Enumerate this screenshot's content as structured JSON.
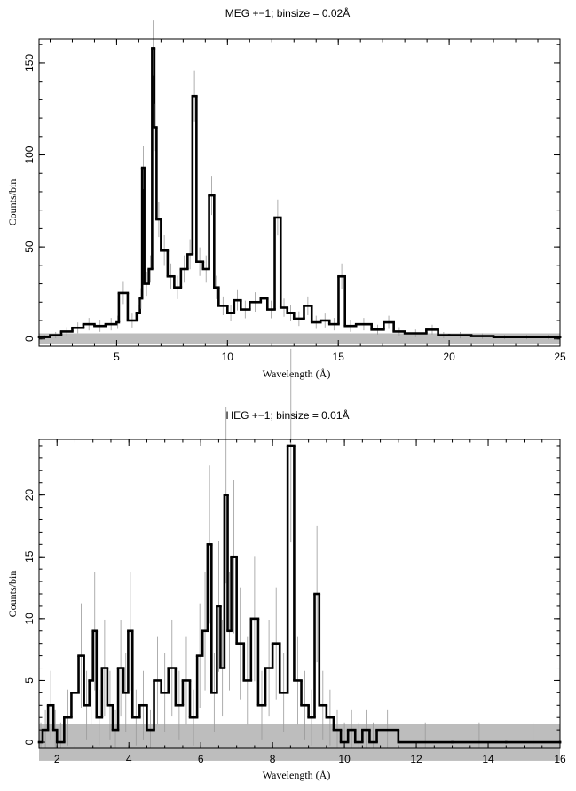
{
  "chart_data": [
    {
      "type": "line",
      "title": "MEG +−1; binsize = 0.02Å",
      "xlabel": "Wavelength (Å)",
      "ylabel": "Counts/bin",
      "xlim": [
        1.5,
        25
      ],
      "ylim": [
        -4,
        163
      ],
      "xticks": [
        5,
        10,
        15,
        20,
        25
      ],
      "xtick_labels": [
        "5",
        "10",
        "15",
        "20",
        "25"
      ],
      "yticks": [
        0,
        50,
        100,
        150
      ],
      "ytick_labels": [
        "0",
        "50",
        "100",
        "150"
      ],
      "grid": false,
      "series": [
        {
          "x": [
            1.5,
            2.0,
            2.5,
            3.0,
            3.5,
            4.0,
            4.5,
            5.0,
            5.1,
            5.5,
            5.9,
            6.05,
            6.15,
            6.25,
            6.45,
            6.6,
            6.7,
            6.8,
            7.0,
            7.3,
            7.6,
            7.9,
            8.2,
            8.42,
            8.6,
            8.9,
            9.17,
            9.4,
            9.6,
            10.0,
            10.3,
            10.6,
            11.0,
            11.5,
            11.8,
            12.13,
            12.4,
            12.7,
            13.0,
            13.45,
            13.8,
            14.2,
            14.6,
            15.01,
            15.3,
            15.8,
            16.5,
            17.05,
            17.5,
            18.0,
            18.97,
            19.5,
            20.0,
            21.0,
            22.0,
            23.0,
            24.0,
            25.0
          ],
          "y": [
            1,
            2,
            4,
            6,
            8,
            7,
            8,
            9,
            25,
            10,
            14,
            22,
            93,
            30,
            38,
            158,
            115,
            65,
            48,
            34,
            28,
            38,
            46,
            132,
            42,
            38,
            78,
            28,
            18,
            14,
            21,
            16,
            20,
            22,
            16,
            66,
            17,
            14,
            11,
            18,
            9,
            10,
            8,
            34,
            7,
            8,
            5,
            9,
            4,
            3,
            5,
            2,
            2,
            1.5,
            1,
            1,
            1,
            1
          ]
        }
      ]
    },
    {
      "type": "line",
      "title": "HEG +−1; binsize = 0.01Å",
      "xlabel": "Wavelength (Å)",
      "ylabel": "Counts/bin",
      "xlim": [
        1.5,
        16
      ],
      "ylim": [
        -0.5,
        24.5
      ],
      "xticks": [
        2,
        4,
        6,
        8,
        10,
        12,
        14,
        16
      ],
      "xtick_labels": [
        "2",
        "4",
        "6",
        "8",
        "10",
        "12",
        "14",
        "16"
      ],
      "yticks": [
        0,
        5,
        10,
        15,
        20
      ],
      "ytick_labels": [
        "0",
        "5",
        "10",
        "15",
        "20"
      ],
      "grid": false,
      "series": [
        {
          "x": [
            1.5,
            1.6,
            1.75,
            1.9,
            2.0,
            2.2,
            2.4,
            2.6,
            2.75,
            2.9,
            3.0,
            3.1,
            3.25,
            3.4,
            3.55,
            3.7,
            3.85,
            3.98,
            4.1,
            4.3,
            4.5,
            4.7,
            4.9,
            5.1,
            5.3,
            5.5,
            5.7,
            5.9,
            6.05,
            6.19,
            6.3,
            6.45,
            6.55,
            6.66,
            6.75,
            6.85,
            7.0,
            7.2,
            7.4,
            7.6,
            7.8,
            8.0,
            8.2,
            8.42,
            8.6,
            8.8,
            9.0,
            9.17,
            9.3,
            9.5,
            9.7,
            9.9,
            10.1,
            10.3,
            10.5,
            10.7,
            10.9,
            11.5,
            13.0,
            14.5,
            16.0
          ],
          "y": [
            0,
            1,
            3,
            1,
            0,
            2,
            4,
            7,
            3,
            5,
            9,
            2,
            6,
            3,
            1,
            6,
            4,
            9,
            2,
            3,
            1,
            5,
            4,
            6,
            3,
            5,
            2,
            7,
            9,
            16,
            4,
            11,
            6,
            20,
            9,
            15,
            8,
            5,
            10,
            3,
            6,
            8,
            4,
            24,
            5,
            3,
            2,
            12,
            3,
            2,
            1,
            0,
            1,
            0,
            1,
            0,
            1,
            0,
            0,
            0,
            0
          ]
        }
      ]
    }
  ]
}
